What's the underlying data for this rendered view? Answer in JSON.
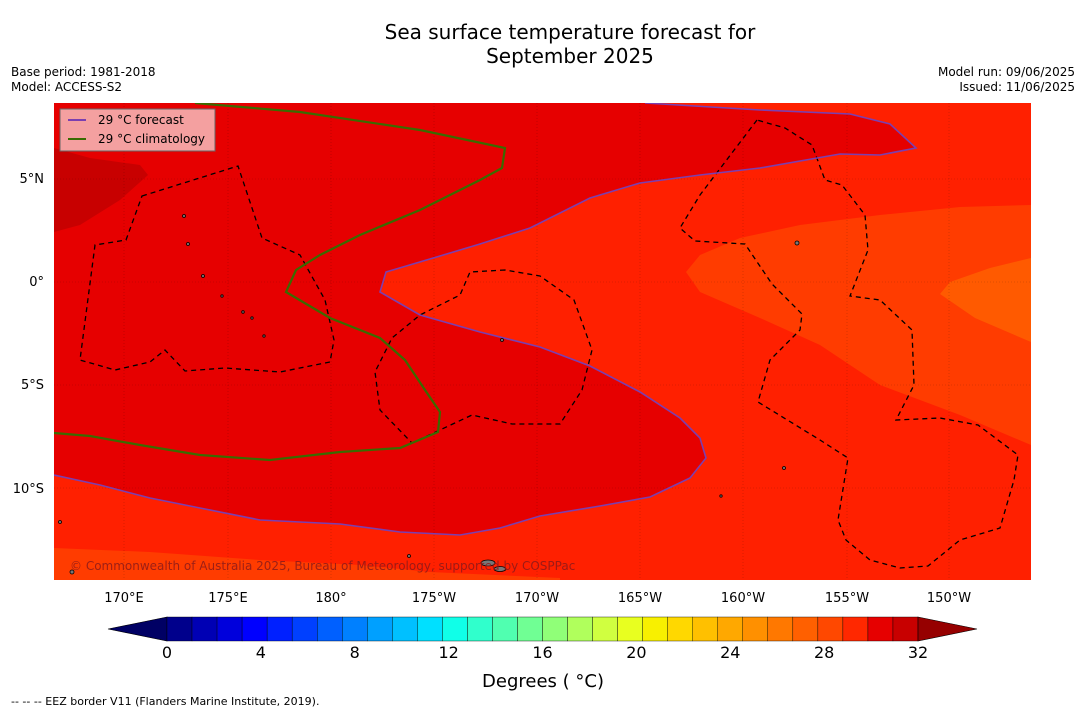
{
  "title_line1": "Sea surface temperature forecast for",
  "title_line2": "September 2025",
  "meta_left": {
    "base_period": "Base period: 1981-2018",
    "model": "Model: ACCESS-S2"
  },
  "meta_right": {
    "model_run": "Model run: 09/06/2025",
    "issued": "Issued: 11/06/2025"
  },
  "legend": {
    "forecast": "29 °C  forecast",
    "climatology": "29 °C  climatology"
  },
  "copyright": "© Commonwealth of Australia 2025, Bureau of Meteorology, supported by COSPPac",
  "lon_labels": [
    "170°E",
    "175°E",
    "180°",
    "175°W",
    "170°W",
    "165°W",
    "160°W",
    "155°W",
    "150°W"
  ],
  "lat_labels": [
    "5°N",
    "0°",
    "5°S",
    "10°S"
  ],
  "colorbar": {
    "title": "Degrees ( °C)",
    "ticks": [
      "0",
      "4",
      "8",
      "12",
      "16",
      "20",
      "24",
      "28",
      "32"
    ],
    "colors": [
      "#00008c",
      "#0000b4",
      "#0000dc",
      "#0000ff",
      "#0020ff",
      "#0040ff",
      "#0060ff",
      "#0080ff",
      "#00a0ff",
      "#00c0ff",
      "#00e0ff",
      "#10ffe8",
      "#30ffcc",
      "#50ffb0",
      "#70ff94",
      "#90ff78",
      "#b0ff5c",
      "#d0ff40",
      "#e8ff20",
      "#f8f000",
      "#ffd800",
      "#ffc000",
      "#ffa800",
      "#ff9000",
      "#ff7800",
      "#ff6000",
      "#ff4800",
      "#ff2800",
      "#e60000",
      "#c80000",
      "#960000"
    ]
  },
  "accent_colors": {
    "sst_27": "#ff5000",
    "sst_28": "#ff2000",
    "sst_29": "#e60000",
    "sst_30": "#c80000",
    "forecast_line": "#7b3fb0",
    "climatology_line": "#3a6b00"
  },
  "footnote": "--  --  -- EEZ border V11 (Flanders Marine Institute, 2019)."
}
